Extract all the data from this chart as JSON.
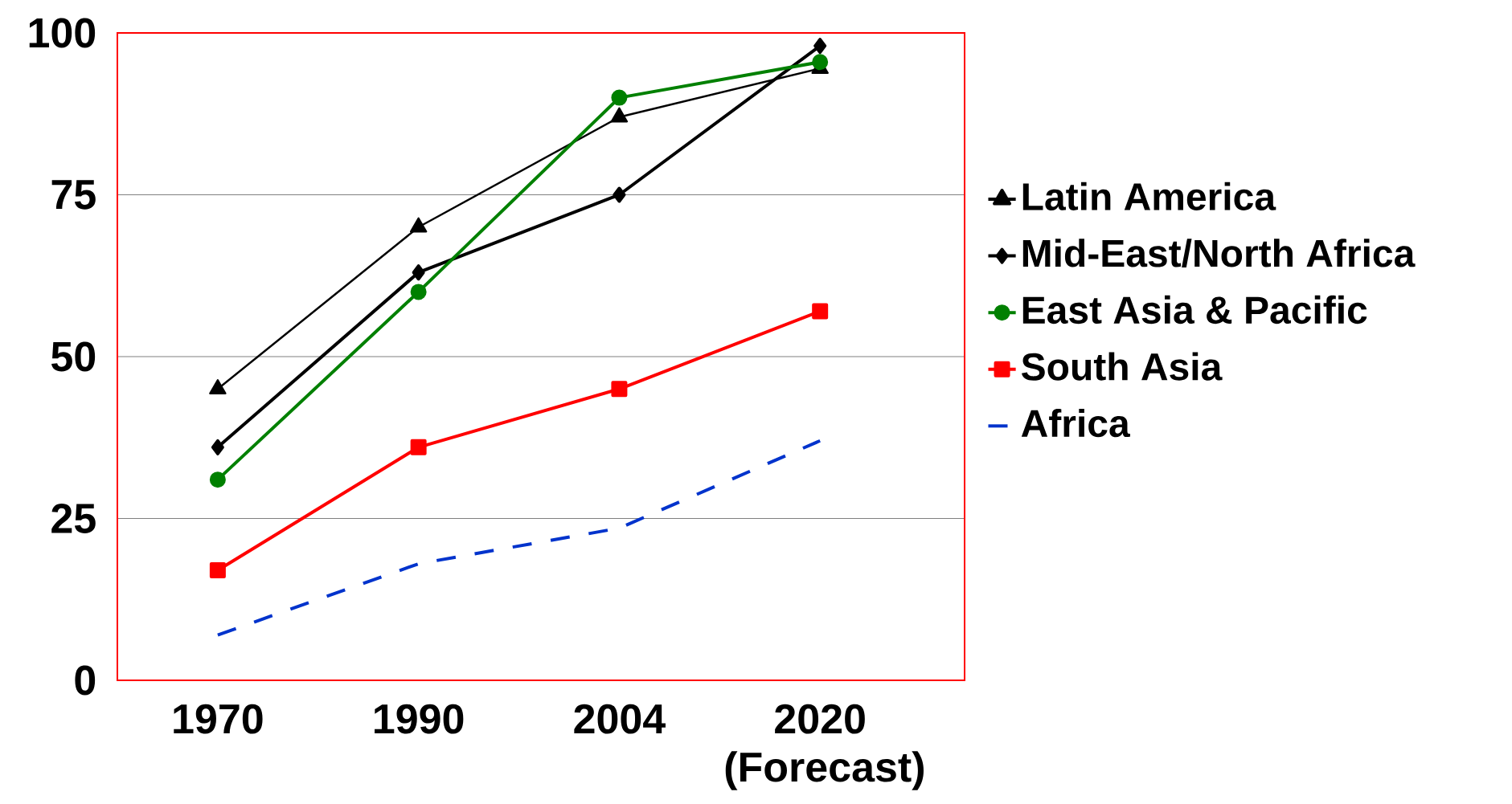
{
  "chart_data": {
    "type": "line",
    "categories": [
      "1970",
      "1990",
      "2004",
      "2020 (Forecast)"
    ],
    "ylim": [
      0,
      100
    ],
    "yticks": [
      0,
      25,
      50,
      75,
      100
    ],
    "grid": "y",
    "legend": "right",
    "series": [
      {
        "name": "Latin America",
        "color": "#000000",
        "marker": "triangle",
        "line_style": "solid",
        "values": [
          45,
          70,
          87,
          94.5
        ]
      },
      {
        "name": "Mid-East/North Africa",
        "color": "#000000",
        "marker": "diamond",
        "line_style": "solid",
        "values": [
          36,
          63,
          75,
          98
        ]
      },
      {
        "name": "East Asia & Pacific",
        "color": "#008000",
        "marker": "circle",
        "line_style": "solid",
        "values": [
          31,
          60,
          90,
          95.5
        ]
      },
      {
        "name": "South Asia",
        "color": "#ff0000",
        "marker": "square",
        "line_style": "solid",
        "values": [
          17,
          36,
          45,
          57
        ]
      },
      {
        "name": "Africa",
        "color": "#0033cc",
        "marker": "none",
        "line_style": "dashed",
        "values": [
          7,
          18,
          23.5,
          37
        ]
      }
    ]
  }
}
